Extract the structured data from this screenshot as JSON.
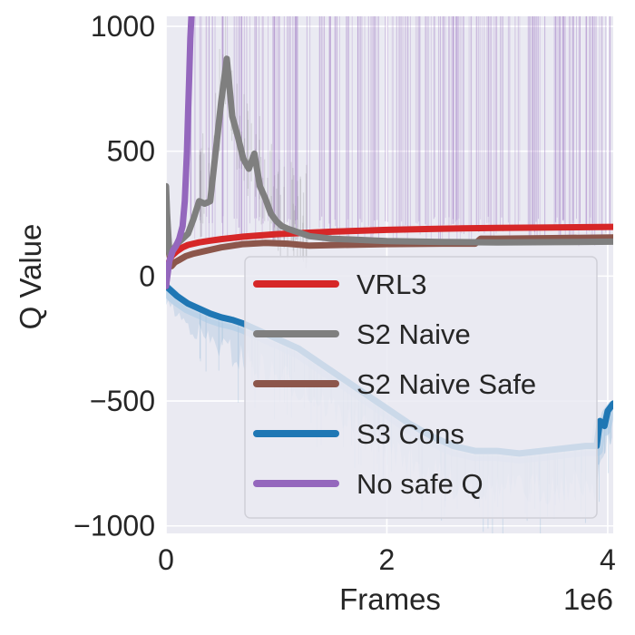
{
  "chart_data": {
    "type": "line",
    "title": "",
    "xlabel": "Frames",
    "ylabel": "Q Value",
    "x_scale_label": "1e6",
    "x_unit_multiplier": 1000000,
    "xlim": [
      0,
      4.05
    ],
    "ylim": [
      -1030,
      1040
    ],
    "x_ticks": [
      0,
      2,
      4
    ],
    "x_tick_labels": [
      "0",
      "2",
      "4"
    ],
    "y_ticks": [
      1000,
      500,
      0,
      -500,
      -1000
    ],
    "y_tick_labels": [
      "1000",
      "500",
      "0",
      "−500",
      "−1000"
    ],
    "grid": true,
    "background": "#eaeaf2",
    "legend_position": "lower-right",
    "series": [
      {
        "name": "VRL3",
        "color": "#d62728",
        "x": [
          0,
          0.02,
          0.05,
          0.1,
          0.15,
          0.2,
          0.3,
          0.4,
          0.5,
          0.7,
          1.0,
          1.5,
          2.0,
          2.5,
          3.0,
          3.5,
          4.05
        ],
        "y": [
          -40,
          50,
          80,
          100,
          115,
          125,
          135,
          142,
          148,
          158,
          168,
          178,
          185,
          190,
          193,
          195,
          197
        ]
      },
      {
        "name": "S2 Naive",
        "color": "#7f7f7f",
        "x": [
          0,
          0.01,
          0.03,
          0.06,
          0.1,
          0.15,
          0.2,
          0.25,
          0.3,
          0.35,
          0.4,
          0.45,
          0.5,
          0.55,
          0.6,
          0.65,
          0.7,
          0.75,
          0.8,
          0.85,
          0.9,
          0.95,
          1.0,
          1.05,
          1.1,
          1.2,
          1.3,
          1.5,
          2.0,
          2.5,
          3.0,
          3.5,
          4.05
        ],
        "y": [
          360,
          250,
          90,
          100,
          130,
          150,
          170,
          230,
          300,
          290,
          300,
          500,
          700,
          870,
          640,
          560,
          470,
          430,
          490,
          360,
          310,
          250,
          220,
          200,
          190,
          175,
          160,
          150,
          140,
          137,
          135,
          136,
          138
        ]
      },
      {
        "name": "S2 Naive Safe",
        "color": "#8c564b",
        "x": [
          0,
          0.02,
          0.05,
          0.08,
          0.12,
          0.18,
          0.25,
          0.35,
          0.5,
          0.7,
          0.9,
          1.1,
          1.3,
          1.6,
          2.0,
          2.5,
          2.8,
          2.85,
          3.0,
          3.5,
          4.05
        ],
        "y": [
          190,
          110,
          40,
          55,
          65,
          80,
          90,
          100,
          115,
          128,
          133,
          130,
          122,
          125,
          128,
          130,
          130,
          150,
          150,
          152,
          155
        ]
      },
      {
        "name": "S3 Cons",
        "color": "#1f77b4",
        "x": [
          0,
          0.1,
          0.2,
          0.3,
          0.4,
          0.5,
          0.6,
          0.7,
          0.8,
          0.9,
          1.0,
          1.2,
          1.4,
          1.6,
          1.8,
          2.0,
          2.2,
          2.4,
          2.6,
          2.8,
          3.0,
          3.2,
          3.4,
          3.6,
          3.8,
          3.9,
          3.93,
          3.97,
          4.0,
          4.05
        ],
        "y": [
          -40,
          -80,
          -110,
          -130,
          -150,
          -165,
          -175,
          -190,
          -210,
          -230,
          -250,
          -290,
          -350,
          -410,
          -470,
          -530,
          -590,
          -640,
          -680,
          -700,
          -700,
          -710,
          -700,
          -690,
          -680,
          -680,
          -580,
          -600,
          -540,
          -510
        ]
      },
      {
        "name": "No safe Q",
        "color": "#9467bd",
        "x": [
          0,
          0.03,
          0.06,
          0.09,
          0.12,
          0.15,
          0.17,
          0.19,
          0.2,
          0.21,
          0.22,
          0.23,
          0.24
        ],
        "y": [
          -40,
          60,
          100,
          120,
          150,
          200,
          300,
          500,
          650,
          800,
          950,
          1040,
          1200
        ]
      }
    ]
  }
}
